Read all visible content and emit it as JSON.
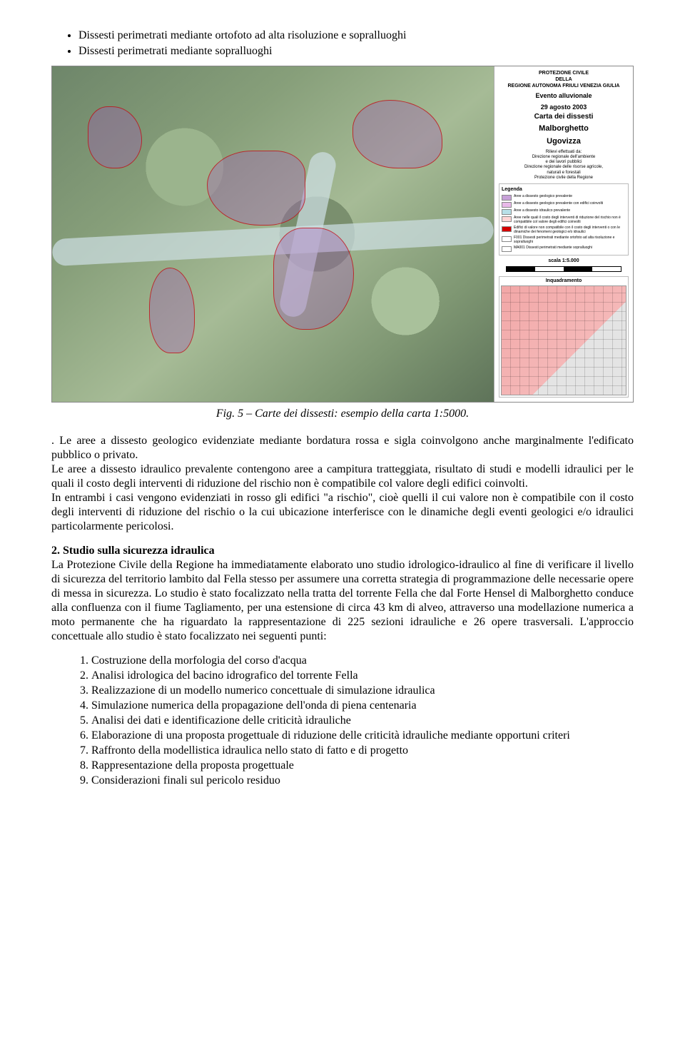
{
  "bullets": [
    "Dissesti perimetrati mediante ortofoto ad alta risoluzione e sopralluoghi",
    "Dissesti perimetrati mediante sopralluoghi"
  ],
  "map_legend": {
    "header1": "PROTEZIONE CIVILE",
    "header2": "DELLA",
    "header3": "REGIONE AUTONOMA FRIULI VENEZIA GIULIA",
    "event_l1": "Evento alluvionale",
    "event_l2": "29 agosto 2003",
    "carta": "Carta dei dissesti",
    "place1": "Malborghetto",
    "place2": "Ugovizza",
    "rilievi": "Rilievi effettuati da:\nDirezione regionale dell'ambiente\ne dei lavori pubblici\nDirezione regionale delle risorse agricole,\nnaturali e forestali\nProtezione civile della Regione",
    "legenda_title": "Legenda",
    "legend_items": [
      {
        "c": "#c7a0d8",
        "t": "Aree a dissesto geologico prevalente"
      },
      {
        "c": "#e8b9e8",
        "t": "Aree a dissesto geologico prevalente con edifici coinvolti"
      },
      {
        "c": "#b8e0e8",
        "t": "Aree a dissesto idraulico prevalente"
      },
      {
        "c": "#ffd6d6",
        "t": "Aree nelle quali il costo degli interventi di riduzione del rischio non è compatibile col valore degli edifici coinvolti"
      },
      {
        "c": "#d40000",
        "t": "Edifici di valore non compatibile con il costo degli interventi o con le dinamiche dei fenomeni geologici e/o idraulici"
      },
      {
        "c": "#ffffff",
        "t": "F001 Dissesti perimetrati mediante ortofoto ad alta risoluzione e sopralluoghi"
      },
      {
        "c": "#ffffff",
        "t": "MA001 Dissesti perimetrati mediante sopralluoghi"
      }
    ],
    "scala": "scala 1:5.000",
    "inq": "Inquadramento"
  },
  "caption": "Fig. 5 – Carte dei dissesti: esempio della carta 1:5000.",
  "para1": ". Le aree a dissesto geologico evidenziate mediante bordatura rossa e sigla coinvolgono anche marginalmente l'edificato pubblico o privato.\nLe aree a dissesto idraulico prevalente contengono aree a campitura tratteggiata, risultato di studi e modelli idraulici per le quali il costo degli interventi di riduzione del rischio non è compatibile col valore degli edifici coinvolti.\nIn entrambi i casi vengono evidenziati in rosso gli edifici \"a rischio\", cioè quelli il cui valore non è compatibile con il costo degli interventi di riduzione del rischio o la cui ubicazione interferisce con le dinamiche degli eventi geologici e/o idraulici particolarmente pericolosi.",
  "section2_head": "2. Studio sulla sicurezza idraulica",
  "section2_body": "La Protezione Civile della Regione ha immediatamente elaborato uno studio idrologico-idraulico al fine di verificare il livello di sicurezza del territorio lambito dal Fella stesso per assumere una corretta strategia di programmazione delle necessarie opere di messa in sicurezza. Lo studio è stato focalizzato nella tratta del torrente Fella che dal Forte Hensel di Malborghetto conduce alla confluenza con il fiume Tagliamento, per una estensione di circa 43 km di alveo, attraverso una modellazione numerica a moto permanente che ha riguardato la rappresentazione di 225 sezioni idrauliche e 26 opere trasversali. L'approccio concettuale allo studio è stato focalizzato nei seguenti punti:",
  "points": [
    "Costruzione della morfologia del corso d'acqua",
    "Analisi idrologica del bacino idrografico del torrente Fella",
    "Realizzazione di un modello numerico concettuale di simulazione idraulica",
    "Simulazione numerica della propagazione dell'onda di piena centenaria",
    "Analisi dei dati e identificazione delle criticità idrauliche",
    "Elaborazione di una proposta progettuale di riduzione delle criticità idrauliche mediante opportuni criteri",
    "Raffronto della modellistica idraulica nello stato di fatto e di progetto",
    "Rappresentazione della proposta progettuale",
    "Considerazioni finali sul pericolo residuo"
  ]
}
